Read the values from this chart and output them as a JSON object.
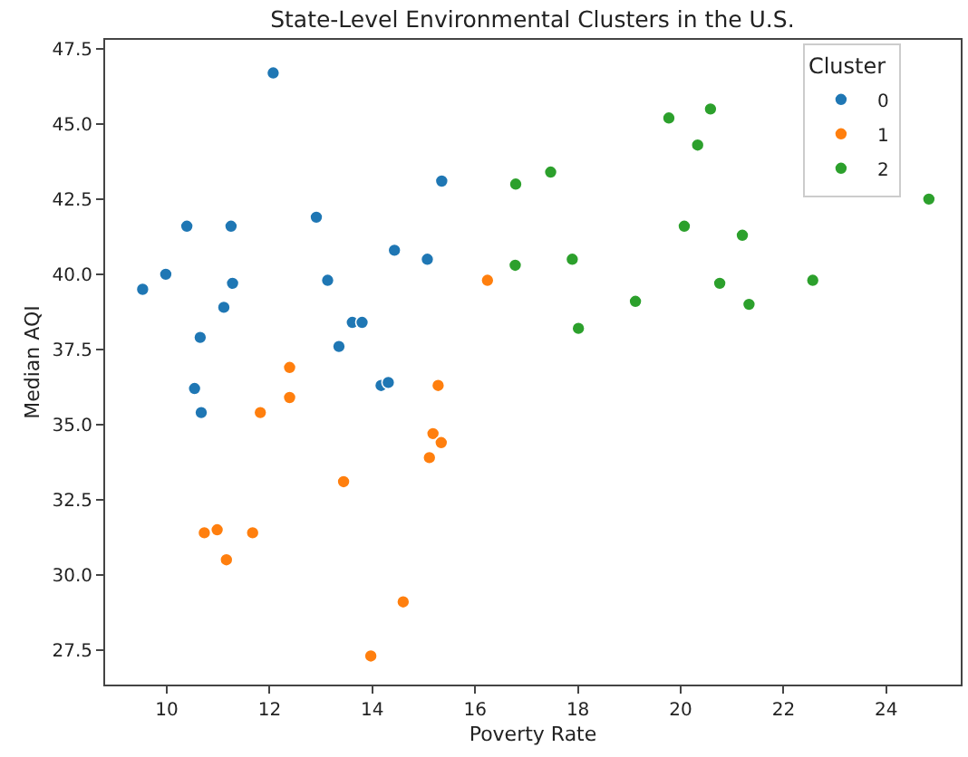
{
  "chart_data": {
    "type": "scatter",
    "title": "State-Level Environmental Clusters in the U.S.",
    "xlabel": "Poverty Rate",
    "ylabel": "Median AQI",
    "legend_title": "Cluster",
    "legend": "top right",
    "grid": false,
    "marker": "circle",
    "xlim": [
      8.8,
      25.45
    ],
    "ylim": [
      26.35,
      47.8
    ],
    "xticks": [
      10,
      12,
      14,
      16,
      18,
      20,
      22,
      24
    ],
    "yticks": [
      {
        "value": 27.5,
        "label": "27.5"
      },
      {
        "value": 30,
        "label": "30.0"
      },
      {
        "value": 32.5,
        "label": "32.5"
      },
      {
        "value": 35,
        "label": "35.0"
      },
      {
        "value": 37.5,
        "label": "37.5"
      },
      {
        "value": 40,
        "label": "40.0"
      },
      {
        "value": 42.5,
        "label": "42.5"
      },
      {
        "value": 45,
        "label": "45.0"
      },
      {
        "value": 47.5,
        "label": "47.5"
      }
    ],
    "series": [
      {
        "name": "0",
        "color": "#1f77b4",
        "x": [
          12.07,
          15.35,
          10.39,
          11.25,
          12.91,
          14.43,
          15.07,
          9.98,
          9.53,
          11.28,
          13.13,
          11.11,
          13.61,
          13.8,
          10.65,
          13.35,
          10.54,
          10.67,
          14.17,
          14.31
        ],
        "values": [
          46.7,
          43.1,
          41.6,
          41.6,
          41.9,
          40.8,
          40.5,
          40.0,
          39.5,
          39.7,
          39.8,
          38.9,
          38.4,
          38.4,
          37.9,
          37.6,
          36.2,
          35.4,
          36.3,
          36.4
        ]
      },
      {
        "name": "1",
        "color": "#ff7f0e",
        "x": [
          16.24,
          12.39,
          15.28,
          12.39,
          11.82,
          15.18,
          15.34,
          15.11,
          13.44,
          10.73,
          10.98,
          11.67,
          11.16,
          14.6,
          13.97
        ],
        "values": [
          39.8,
          36.9,
          36.3,
          35.9,
          35.4,
          34.7,
          34.4,
          33.9,
          33.1,
          31.4,
          31.5,
          31.4,
          30.5,
          29.1,
          27.3
        ]
      },
      {
        "name": "2",
        "color": "#2ca02c",
        "x": [
          16.79,
          17.47,
          16.78,
          17.89,
          18.01,
          19.12,
          19.77,
          20.58,
          20.33,
          20.07,
          21.2,
          20.76,
          21.33,
          22.57,
          24.83
        ],
        "values": [
          43.0,
          43.4,
          40.3,
          40.5,
          38.2,
          39.1,
          45.2,
          45.5,
          44.3,
          41.6,
          41.3,
          39.7,
          39.0,
          39.8,
          42.5
        ]
      }
    ]
  }
}
